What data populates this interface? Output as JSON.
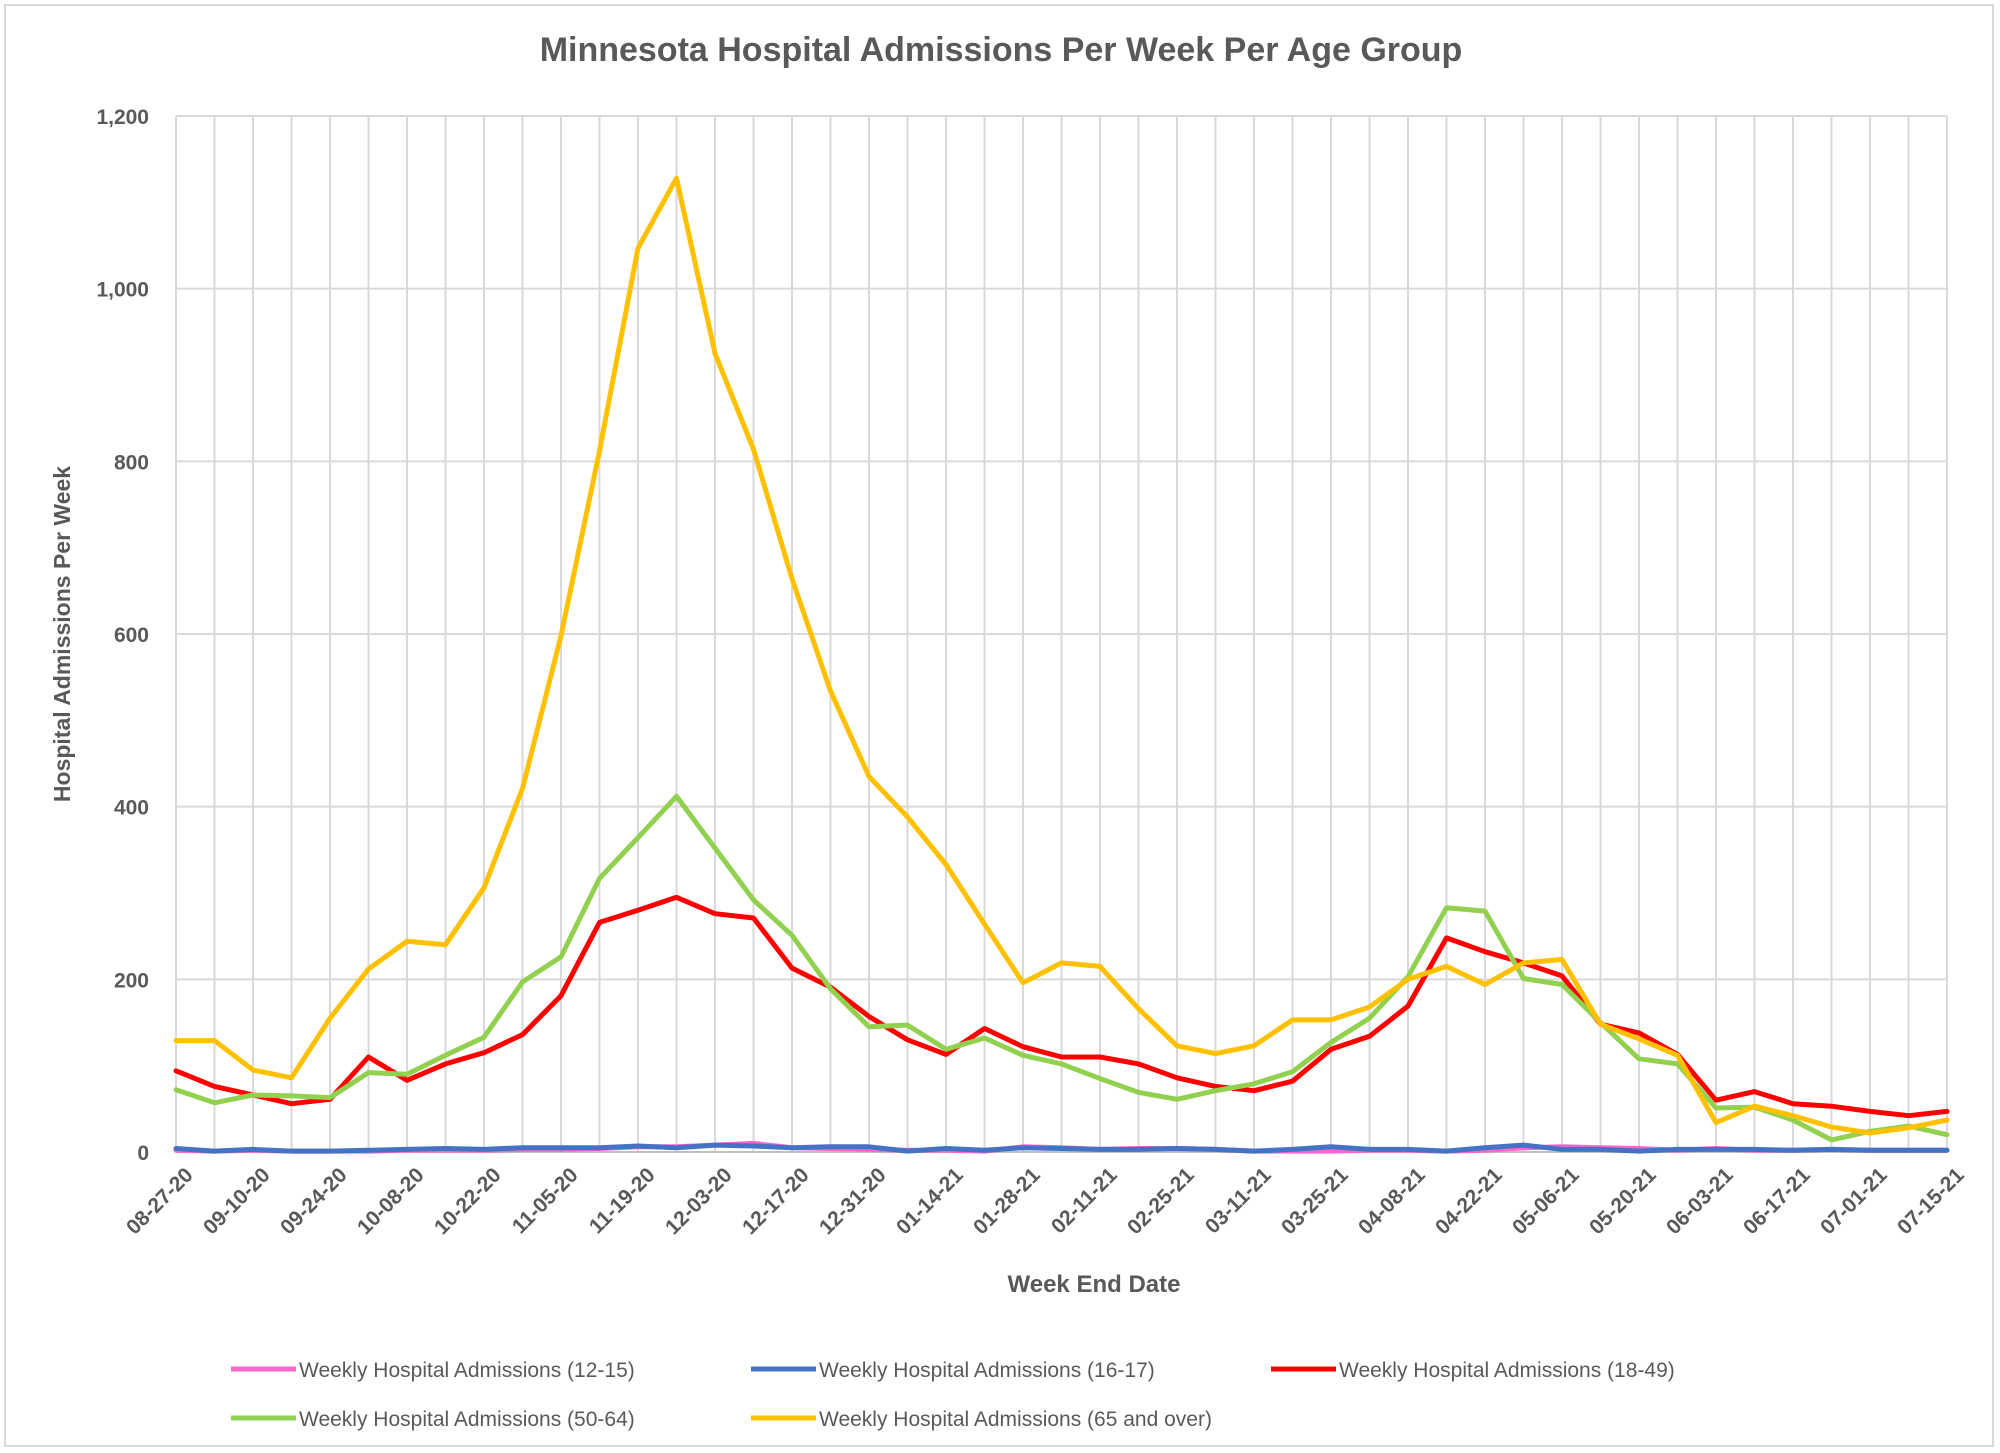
{
  "chart_data": {
    "type": "line",
    "title": "Minnesota Hospital Admissions Per Week Per Age Group",
    "xlabel": "Week End Date",
    "ylabel": "Hospital Admissions Per Week",
    "ylim": [
      0,
      1200
    ],
    "yticks": [
      0,
      200,
      400,
      600,
      800,
      1000,
      1200
    ],
    "ytick_labels": [
      "0",
      "200",
      "400",
      "600",
      "800",
      "1,000",
      "1,200"
    ],
    "grid": "both",
    "legend_position": "bottom",
    "x": [
      "08-27-20",
      "09-03-20",
      "09-10-20",
      "09-17-20",
      "09-24-20",
      "10-01-20",
      "10-08-20",
      "10-15-20",
      "10-22-20",
      "10-29-20",
      "11-05-20",
      "11-12-20",
      "11-19-20",
      "11-26-20",
      "12-03-20",
      "12-10-20",
      "12-17-20",
      "12-24-20",
      "12-31-20",
      "01-07-21",
      "01-14-21",
      "01-21-21",
      "01-28-21",
      "02-04-21",
      "02-11-21",
      "02-18-21",
      "02-25-21",
      "03-04-21",
      "03-11-21",
      "03-18-21",
      "03-25-21",
      "04-01-21",
      "04-08-21",
      "04-15-21",
      "04-22-21",
      "04-29-21",
      "05-06-21",
      "05-13-21",
      "05-20-21",
      "05-27-21",
      "06-03-21",
      "06-10-21",
      "06-17-21",
      "06-24-21",
      "07-01-21",
      "07-08-21",
      "07-15-21"
    ],
    "x_tick_labels": [
      "08-27-20",
      "09-10-20",
      "09-24-20",
      "10-08-20",
      "10-22-20",
      "11-05-20",
      "11-19-20",
      "12-03-20",
      "12-17-20",
      "12-31-20",
      "01-14-21",
      "01-28-21",
      "02-11-21",
      "02-25-21",
      "03-11-21",
      "03-25-21",
      "04-08-21",
      "04-22-21",
      "05-06-21",
      "05-20-21",
      "06-03-21",
      "06-17-21",
      "07-01-21",
      "07-15-21"
    ],
    "series": [
      {
        "name": "Weekly Hospital Admissions (12-15)",
        "color": "#ff66cc",
        "values": [
          2,
          1,
          2,
          1,
          1,
          1,
          2,
          2,
          2,
          3,
          3,
          4,
          6,
          6,
          8,
          10,
          5,
          4,
          3,
          2,
          2,
          1,
          6,
          5,
          3,
          4,
          4,
          3,
          1,
          1,
          1,
          2,
          2,
          1,
          2,
          5,
          6,
          5,
          4,
          2,
          4,
          2,
          2,
          3,
          2,
          2,
          2
        ]
      },
      {
        "name": "Weekly Hospital Admissions (16-17)",
        "color": "#4472c4",
        "values": [
          4,
          1,
          3,
          1,
          1,
          2,
          3,
          4,
          3,
          5,
          5,
          5,
          7,
          5,
          8,
          7,
          5,
          6,
          6,
          1,
          4,
          2,
          5,
          4,
          3,
          3,
          4,
          3,
          1,
          3,
          6,
          3,
          3,
          1,
          5,
          8,
          3,
          3,
          1,
          3,
          3,
          3,
          2,
          3,
          2,
          2,
          2
        ]
      },
      {
        "name": "Weekly Hospital Admissions (18-49)",
        "color": "#ff0000",
        "values": [
          94,
          76,
          66,
          56,
          61,
          110,
          83,
          102,
          115,
          136,
          181,
          266,
          280,
          295,
          276,
          271,
          213,
          191,
          157,
          130,
          113,
          143,
          122,
          110,
          110,
          102,
          86,
          76,
          71,
          82,
          119,
          134,
          169,
          248,
          232,
          219,
          204,
          148,
          138,
          113,
          60,
          70,
          56,
          53,
          47,
          42,
          47
        ]
      },
      {
        "name": "Weekly Hospital Admissions (50-64)",
        "color": "#92d050",
        "values": [
          72,
          57,
          66,
          65,
          63,
          92,
          90,
          112,
          133,
          197,
          226,
          317,
          364,
          412,
          352,
          292,
          251,
          189,
          145,
          147,
          119,
          132,
          112,
          102,
          85,
          69,
          61,
          71,
          79,
          93,
          127,
          155,
          203,
          283,
          279,
          201,
          194,
          150,
          108,
          102,
          51,
          52,
          37,
          14,
          24,
          30,
          20
        ]
      },
      {
        "name": "Weekly Hospital Admissions (65 and over)",
        "color": "#ffc000",
        "values": [
          129,
          129,
          95,
          86,
          155,
          212,
          244,
          240,
          306,
          421,
          598,
          812,
          1047,
          1128,
          925,
          814,
          664,
          534,
          435,
          388,
          333,
          264,
          196,
          219,
          215,
          166,
          123,
          114,
          123,
          153,
          153,
          168,
          200,
          215,
          194,
          219,
          223,
          148,
          131,
          112,
          34,
          53,
          42,
          29,
          22,
          28,
          37
        ]
      }
    ]
  }
}
